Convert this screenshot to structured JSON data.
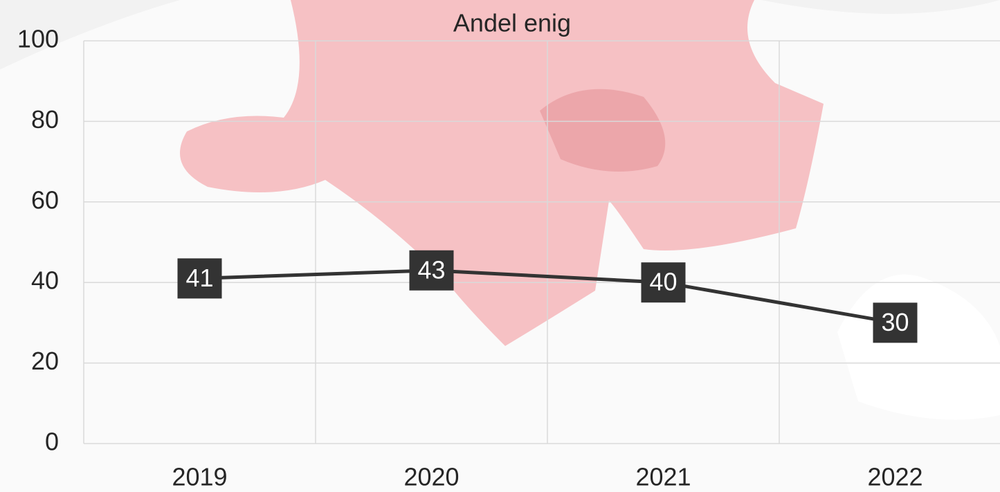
{
  "chart_data": {
    "type": "line",
    "title": "Andel enig",
    "categories": [
      "2019",
      "2020",
      "2021",
      "2022"
    ],
    "values": [
      41,
      43,
      40,
      30
    ],
    "color": "#333333",
    "ylim": [
      0,
      100
    ],
    "yticks": [
      0,
      20,
      40,
      60,
      80,
      100
    ],
    "grid": true
  }
}
